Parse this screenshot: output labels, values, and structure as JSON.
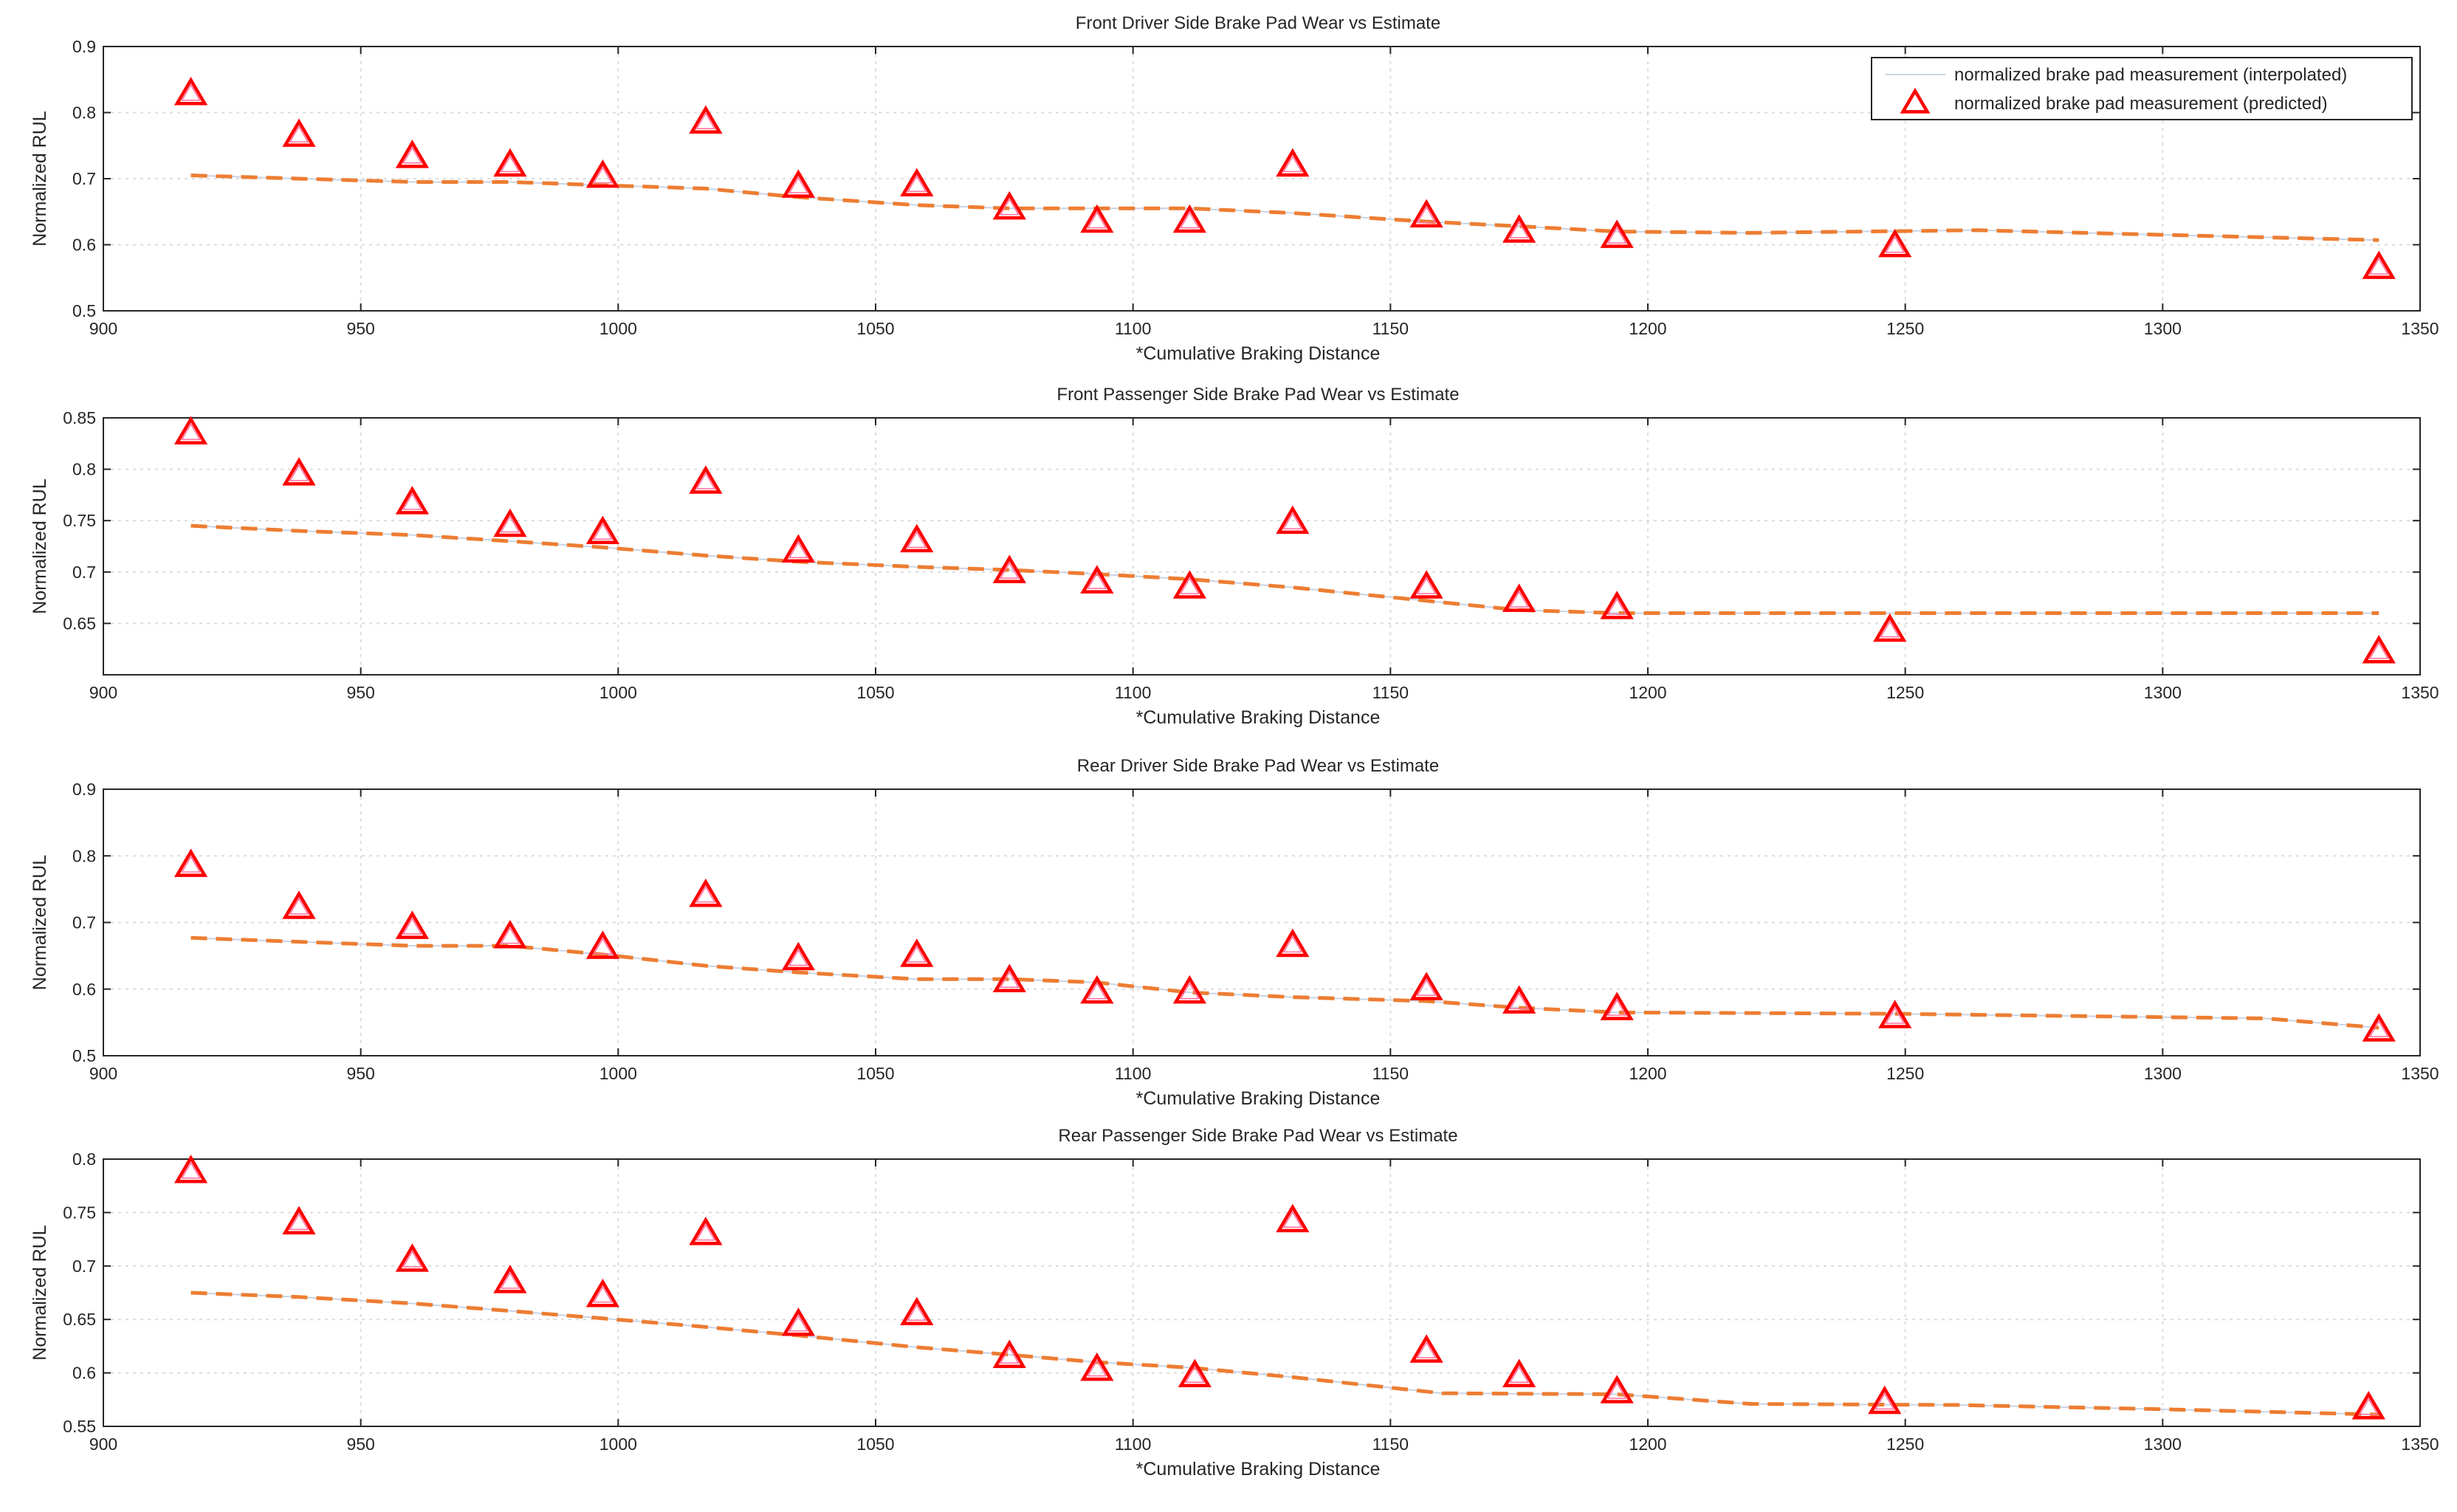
{
  "figure": {
    "background": "#ffffff"
  },
  "legend": {
    "location": "top-right",
    "entries": [
      {
        "label": "normalized brake pad measurement (interpolated)",
        "style": "line",
        "color": "#c8d4e6"
      },
      {
        "label": "normalized brake pad measurement (predicted)",
        "style": "triangle-marker",
        "color": "#ff0000"
      }
    ]
  },
  "chart_data": [
    {
      "type": "line",
      "title": "Front Driver Side Brake Pad Wear vs Estimate",
      "xlabel": "*Cumulative Braking Distance",
      "ylabel": "Normalized RUL",
      "xlim": [
        900,
        1350
      ],
      "ylim": [
        0.5,
        0.9
      ],
      "xticks": [
        900,
        950,
        1000,
        1050,
        1100,
        1150,
        1200,
        1250,
        1300,
        1350
      ],
      "yticks": [
        0.5,
        0.6,
        0.7,
        0.8,
        0.9
      ],
      "ytick_labels": [
        "0.5",
        "0.6",
        "0.7",
        "0.8",
        "0.9"
      ],
      "grid": true,
      "legend": true,
      "series": [
        {
          "name": "normalized brake pad measurement (interpolated)",
          "color": "#ed7d31",
          "style": "dashed",
          "x": [
            917,
            938,
            960,
            979,
            997,
            1017,
            1035,
            1058,
            1076,
            1093,
            1111,
            1131,
            1157,
            1175,
            1194,
            1220,
            1264,
            1300,
            1342
          ],
          "y": [
            0.705,
            0.7,
            0.695,
            0.695,
            0.69,
            0.685,
            0.672,
            0.66,
            0.655,
            0.655,
            0.655,
            0.648,
            0.635,
            0.628,
            0.62,
            0.618,
            0.622,
            0.615,
            0.607
          ]
        },
        {
          "name": "normalized brake pad measurement (predicted)",
          "color": "#ff0000",
          "style": "triangle",
          "x": [
            917,
            938,
            960,
            979,
            997,
            1017,
            1035,
            1058,
            1076,
            1093,
            1111,
            1131,
            1157,
            1175,
            1194,
            1248,
            1342
          ],
          "y": [
            0.828,
            0.765,
            0.733,
            0.72,
            0.703,
            0.785,
            0.688,
            0.69,
            0.655,
            0.635,
            0.635,
            0.72,
            0.643,
            0.62,
            0.612,
            0.598,
            0.565
          ]
        }
      ]
    },
    {
      "type": "line",
      "title": "Front Passenger Side Brake Pad Wear vs Estimate",
      "xlabel": "*Cumulative Braking Distance",
      "ylabel": "Normalized RUL",
      "xlim": [
        900,
        1350
      ],
      "ylim": [
        0.6,
        0.85
      ],
      "xticks": [
        900,
        950,
        1000,
        1050,
        1100,
        1150,
        1200,
        1250,
        1300,
        1350
      ],
      "yticks": [
        0.65,
        0.7,
        0.75,
        0.8,
        0.85
      ],
      "ytick_labels": [
        "0.65",
        "0.7",
        "0.75",
        "0.8",
        "0.85"
      ],
      "grid": true,
      "legend": false,
      "series": [
        {
          "name": "normalized brake pad measurement (interpolated)",
          "color": "#ed7d31",
          "style": "dashed",
          "x": [
            917,
            938,
            960,
            979,
            997,
            1017,
            1035,
            1058,
            1076,
            1093,
            1111,
            1131,
            1157,
            1175,
            1194,
            1248,
            1300,
            1342
          ],
          "y": [
            0.745,
            0.74,
            0.736,
            0.73,
            0.724,
            0.716,
            0.71,
            0.705,
            0.702,
            0.698,
            0.693,
            0.685,
            0.672,
            0.663,
            0.66,
            0.66,
            0.66,
            0.66
          ]
        },
        {
          "name": "normalized brake pad measurement (predicted)",
          "color": "#ff0000",
          "style": "triangle",
          "x": [
            917,
            938,
            960,
            979,
            997,
            1017,
            1035,
            1058,
            1076,
            1093,
            1111,
            1131,
            1157,
            1175,
            1194,
            1247,
            1342
          ],
          "y": [
            0.835,
            0.795,
            0.767,
            0.745,
            0.738,
            0.787,
            0.72,
            0.73,
            0.7,
            0.69,
            0.685,
            0.748,
            0.685,
            0.672,
            0.665,
            0.643,
            0.622
          ]
        }
      ]
    },
    {
      "type": "line",
      "title": "Rear Driver Side Brake Pad Wear vs Estimate",
      "xlabel": "*Cumulative Braking Distance",
      "ylabel": "Normalized RUL",
      "xlim": [
        900,
        1350
      ],
      "ylim": [
        0.5,
        0.9
      ],
      "xticks": [
        900,
        950,
        1000,
        1050,
        1100,
        1150,
        1200,
        1250,
        1300,
        1350
      ],
      "yticks": [
        0.5,
        0.6,
        0.7,
        0.8,
        0.9
      ],
      "ytick_labels": [
        "0.5",
        "0.6",
        "0.7",
        "0.8",
        "0.9"
      ],
      "grid": true,
      "legend": false,
      "series": [
        {
          "name": "normalized brake pad measurement (interpolated)",
          "color": "#ed7d31",
          "style": "dashed",
          "x": [
            917,
            938,
            960,
            979,
            997,
            1017,
            1035,
            1058,
            1076,
            1093,
            1111,
            1131,
            1157,
            1175,
            1194,
            1248,
            1320,
            1342
          ],
          "y": [
            0.677,
            0.671,
            0.665,
            0.665,
            0.652,
            0.635,
            0.625,
            0.615,
            0.615,
            0.61,
            0.595,
            0.588,
            0.582,
            0.572,
            0.565,
            0.563,
            0.556,
            0.542
          ]
        },
        {
          "name": "normalized brake pad measurement (predicted)",
          "color": "#ff0000",
          "style": "triangle",
          "x": [
            917,
            938,
            960,
            979,
            997,
            1017,
            1035,
            1058,
            1076,
            1093,
            1111,
            1131,
            1157,
            1175,
            1194,
            1248,
            1342
          ],
          "y": [
            0.785,
            0.722,
            0.692,
            0.678,
            0.662,
            0.74,
            0.645,
            0.65,
            0.612,
            0.595,
            0.595,
            0.665,
            0.6,
            0.58,
            0.57,
            0.558,
            0.538
          ]
        }
      ]
    },
    {
      "type": "line",
      "title": "Rear Passenger Side Brake Pad Wear vs Estimate",
      "xlabel": "*Cumulative Braking Distance",
      "ylabel": "Normalized RUL",
      "xlim": [
        900,
        1350
      ],
      "ylim": [
        0.55,
        0.8
      ],
      "xticks": [
        900,
        950,
        1000,
        1050,
        1100,
        1150,
        1200,
        1250,
        1300,
        1350
      ],
      "yticks": [
        0.55,
        0.6,
        0.65,
        0.7,
        0.75,
        0.8
      ],
      "ytick_labels": [
        "0.55",
        "0.6",
        "0.65",
        "0.7",
        "0.75",
        "0.8"
      ],
      "grid": true,
      "legend": false,
      "series": [
        {
          "name": "normalized brake pad measurement (interpolated)",
          "color": "#ed7d31",
          "style": "dashed",
          "x": [
            917,
            938,
            960,
            979,
            997,
            1017,
            1035,
            1058,
            1076,
            1093,
            1111,
            1131,
            1160,
            1194,
            1220,
            1260,
            1300,
            1342
          ],
          "y": [
            0.675,
            0.671,
            0.665,
            0.658,
            0.651,
            0.643,
            0.635,
            0.624,
            0.617,
            0.61,
            0.605,
            0.596,
            0.581,
            0.58,
            0.571,
            0.57,
            0.566,
            0.561
          ]
        },
        {
          "name": "normalized brake pad measurement (predicted)",
          "color": "#ff0000",
          "style": "triangle",
          "x": [
            917,
            938,
            960,
            979,
            997,
            1017,
            1035,
            1058,
            1076,
            1093,
            1112,
            1131,
            1157,
            1175,
            1194,
            1246,
            1340
          ],
          "y": [
            0.788,
            0.74,
            0.705,
            0.685,
            0.672,
            0.73,
            0.645,
            0.655,
            0.615,
            0.603,
            0.597,
            0.742,
            0.62,
            0.597,
            0.582,
            0.572,
            0.567
          ]
        }
      ]
    }
  ]
}
